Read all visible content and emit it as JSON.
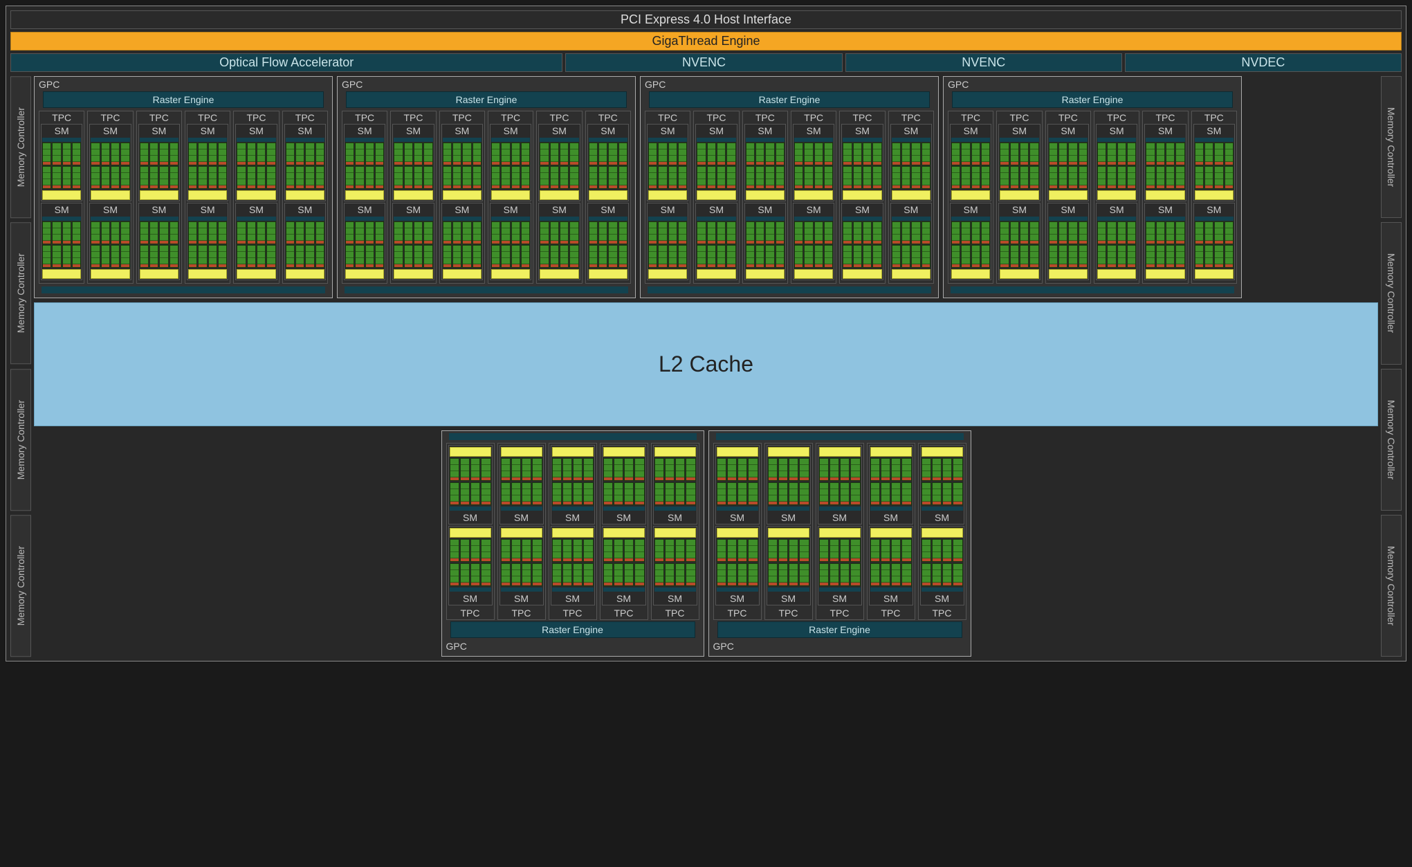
{
  "colors": {
    "background": "#1a1a1a",
    "chip_bg": "#282828",
    "teal": "#13424f",
    "teal_text": "#c9e4e9",
    "orange": "#f5a623",
    "l2_blue": "#8fc3e0",
    "core_green": "#3f8f2a",
    "core_red": "#b84a2a",
    "yellow": "#f0f060",
    "border_light": "#aaa",
    "border_dark": "#555",
    "text": "#d0d0d0"
  },
  "labels": {
    "pci": "PCI Express 4.0 Host Interface",
    "gigathread": "GigaThread Engine",
    "ofa": "Optical Flow Accelerator",
    "nvenc": "NVENC",
    "nvdec": "NVDEC",
    "mc": "Memory Controller",
    "gpc": "GPC",
    "raster": "Raster Engine",
    "tpc": "TPC",
    "sm": "SM",
    "l2": "L2 Cache"
  },
  "layout": {
    "top_engines": [
      "ofa",
      "nvenc",
      "nvenc",
      "nvdec"
    ],
    "mc_left_count": 4,
    "mc_right_count": 4,
    "top_gpc_count": 4,
    "top_tpc_per_gpc": 6,
    "bottom_gpc_count": 2,
    "bottom_tpc_per_gpc": 5,
    "sm_per_tpc": 2,
    "core_cols_per_sm": 4,
    "core_green_rows": 3,
    "core_blocks": 2
  },
  "fonts": {
    "bar": 18,
    "label": 14,
    "l2": 32
  }
}
